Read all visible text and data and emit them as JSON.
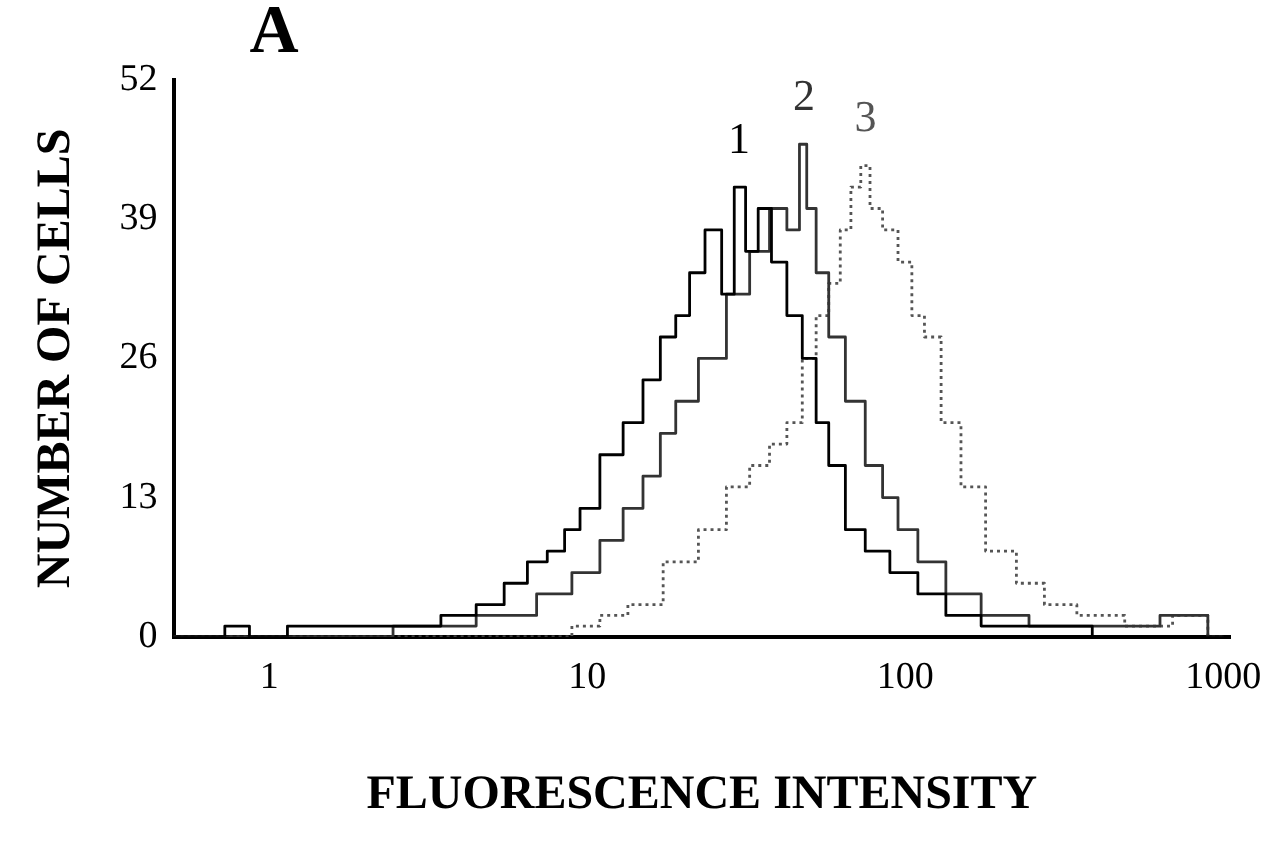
{
  "chart_data": {
    "type": "step",
    "title": "A",
    "xlabel": "FLUORESCENCE INTENSITY",
    "ylabel": "NUMBER OF CELLS",
    "log": "x",
    "xlim": [
      0.5,
      1050
    ],
    "xticks": [
      1,
      10,
      100,
      1000
    ],
    "ylim": [
      0,
      52
    ],
    "yticks": [
      0,
      13,
      26,
      39,
      52
    ],
    "grid": false,
    "legend": false,
    "marker": "none",
    "series": [
      {
        "name": "1",
        "color": "#000000",
        "line_style": "solid",
        "x": [
          0.5,
          0.7,
          0.75,
          1,
          1.3,
          1.5,
          2,
          2.5,
          3,
          4,
          5,
          6,
          7,
          8,
          9,
          10,
          12,
          14,
          16,
          18,
          20,
          22,
          25,
          28,
          30,
          33,
          36,
          40,
          45,
          50,
          55,
          60,
          70,
          80,
          100,
          120,
          150,
          200,
          300,
          500,
          1000
        ],
        "values": [
          0,
          0,
          1,
          0,
          1,
          1,
          1,
          1,
          1,
          2,
          3,
          5,
          7,
          8,
          10,
          12,
          17,
          20,
          24,
          28,
          30,
          34,
          38,
          32,
          42,
          36,
          40,
          35,
          30,
          26,
          20,
          16,
          10,
          8,
          6,
          4,
          2,
          1,
          1,
          0,
          0
        ]
      },
      {
        "name": "2",
        "color": "#333333",
        "line_style": "solid",
        "x": [
          0.5,
          1,
          2,
          3,
          4,
          5,
          6,
          8,
          10,
          12,
          14,
          16,
          18,
          20,
          25,
          30,
          35,
          40,
          45,
          48,
          50,
          55,
          60,
          70,
          80,
          90,
          100,
          120,
          150,
          200,
          300,
          500,
          800,
          1000
        ],
        "values": [
          0,
          0,
          0,
          1,
          1,
          2,
          2,
          4,
          6,
          9,
          12,
          15,
          19,
          22,
          26,
          32,
          36,
          40,
          38,
          46,
          40,
          34,
          28,
          22,
          16,
          13,
          10,
          7,
          4,
          2,
          1,
          1,
          2,
          0
        ]
      },
      {
        "name": "3",
        "color": "#555555",
        "line_style": "dotted",
        "x": [
          0.5,
          5,
          8,
          10,
          12,
          15,
          20,
          25,
          30,
          35,
          40,
          45,
          50,
          55,
          60,
          65,
          70,
          75,
          80,
          90,
          100,
          110,
          120,
          140,
          160,
          200,
          250,
          300,
          400,
          600,
          800,
          1000
        ],
        "values": [
          0,
          0,
          0,
          1,
          2,
          3,
          7,
          10,
          14,
          16,
          18,
          20,
          26,
          30,
          33,
          38,
          42,
          44,
          40,
          38,
          35,
          30,
          28,
          20,
          14,
          8,
          5,
          3,
          2,
          1,
          2,
          0
        ]
      }
    ]
  }
}
